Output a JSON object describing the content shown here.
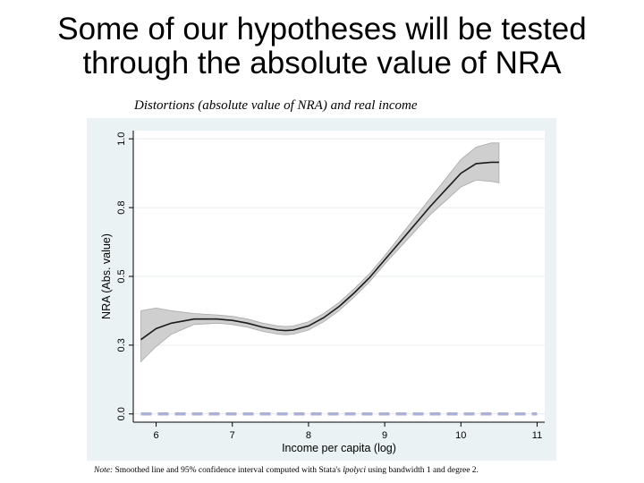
{
  "slide": {
    "title_line1": "Some of our hypotheses will be tested",
    "title_line2": "through the absolute value of NRA"
  },
  "figure": {
    "caption": "Distortions (absolute value of NRA) and real income",
    "note_label": "Note:",
    "note_text_1": " Smoothed line and 95% confidence interval computed with Stata's ",
    "note_command": "lpolyci",
    "note_text_2": " using bandwidth 1 and degree 2."
  },
  "colors": {
    "panel_bg": "#eaf2f3",
    "plot_bg": "#ffffff",
    "ci_fill": "#cfcfcf",
    "ci_edge": "#a8a8a8",
    "line": "#1a1a1a",
    "reference_dash": "#aab0d6",
    "grid": "#e6ecef"
  },
  "chart_data": {
    "type": "line",
    "xlabel": "Income per capita (log)",
    "ylabel": "NRA (Abs. value)",
    "xlim": [
      5.7,
      11.1
    ],
    "ylim": [
      -0.03,
      1.03
    ],
    "xticks": [
      6,
      7,
      8,
      9,
      10,
      11
    ],
    "xtick_labels": [
      "6",
      "7",
      "8",
      "9",
      "10",
      "11"
    ],
    "yticks": [
      0.0,
      0.25,
      0.5,
      0.75,
      1.0
    ],
    "ytick_labels": [
      "0.0",
      "0.3",
      "0.5",
      "0.8",
      "1.0"
    ],
    "grid": true,
    "series": [
      {
        "kind": "fitted",
        "x": [
          5.8,
          6.0,
          6.2,
          6.5,
          6.8,
          7.0,
          7.2,
          7.4,
          7.6,
          7.7,
          7.8,
          8.0,
          8.2,
          8.4,
          8.6,
          8.8,
          9.0,
          9.2,
          9.4,
          9.6,
          9.8,
          10.0,
          10.2,
          10.4,
          10.5
        ],
        "y": [
          0.27,
          0.31,
          0.33,
          0.345,
          0.345,
          0.34,
          0.33,
          0.315,
          0.305,
          0.303,
          0.305,
          0.32,
          0.35,
          0.39,
          0.44,
          0.495,
          0.56,
          0.625,
          0.69,
          0.755,
          0.815,
          0.875,
          0.91,
          0.915,
          0.915
        ]
      },
      {
        "kind": "ci_upper",
        "x": [
          5.8,
          6.0,
          6.2,
          6.5,
          6.8,
          7.0,
          7.2,
          7.4,
          7.6,
          7.7,
          7.8,
          8.0,
          8.2,
          8.4,
          8.6,
          8.8,
          9.0,
          9.2,
          9.4,
          9.6,
          9.8,
          10.0,
          10.2,
          10.4,
          10.5
        ],
        "y": [
          0.375,
          0.385,
          0.375,
          0.365,
          0.36,
          0.355,
          0.345,
          0.33,
          0.32,
          0.318,
          0.32,
          0.335,
          0.365,
          0.405,
          0.455,
          0.51,
          0.575,
          0.645,
          0.715,
          0.785,
          0.855,
          0.925,
          0.97,
          0.985,
          0.985
        ]
      },
      {
        "kind": "ci_lower",
        "x": [
          5.8,
          6.0,
          6.2,
          6.5,
          6.8,
          7.0,
          7.2,
          7.4,
          7.6,
          7.7,
          7.8,
          8.0,
          8.2,
          8.4,
          8.6,
          8.8,
          9.0,
          9.2,
          9.4,
          9.6,
          9.8,
          10.0,
          10.2,
          10.4,
          10.5
        ],
        "y": [
          0.19,
          0.245,
          0.29,
          0.325,
          0.33,
          0.325,
          0.315,
          0.3,
          0.29,
          0.288,
          0.29,
          0.305,
          0.335,
          0.375,
          0.425,
          0.48,
          0.545,
          0.605,
          0.665,
          0.725,
          0.775,
          0.825,
          0.85,
          0.845,
          0.84
        ]
      },
      {
        "kind": "reference",
        "x": [
          5.8,
          11.0
        ],
        "y": [
          0.0,
          0.0
        ]
      }
    ]
  }
}
